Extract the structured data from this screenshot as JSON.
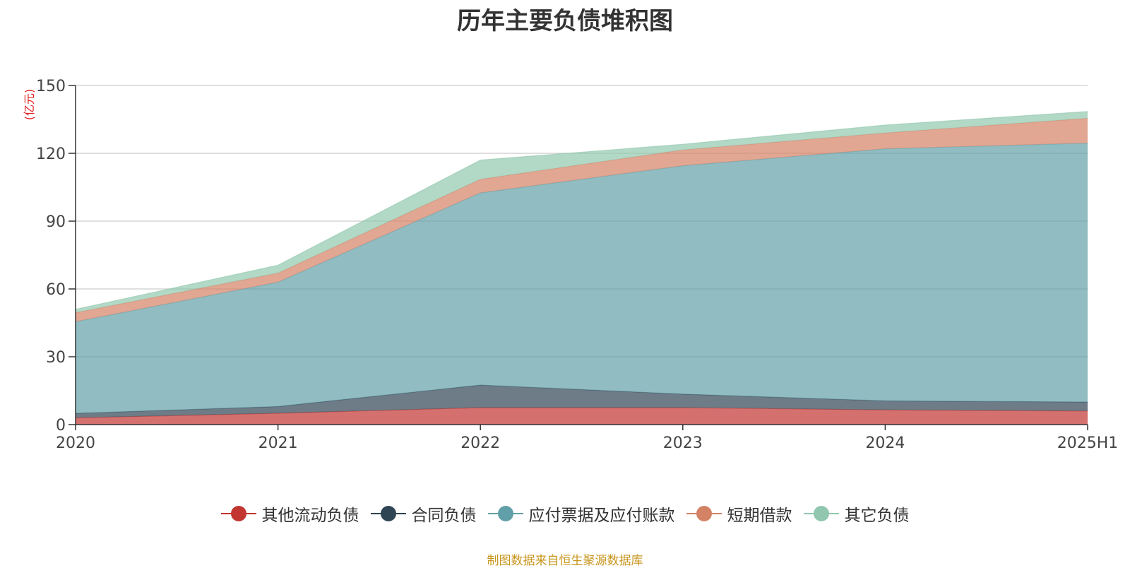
{
  "title": "历年主要负债堆积图",
  "unit_label": "(亿元)",
  "source": "制图数据来自恒生聚源数据库",
  "chart_data": {
    "type": "area",
    "stacked": true,
    "categories": [
      "2020",
      "2021",
      "2022",
      "2023",
      "2024",
      "2025H1"
    ],
    "ylim": [
      0,
      150
    ],
    "yticks": [
      0,
      30,
      60,
      90,
      120,
      150
    ],
    "grid": true,
    "legend_position": "bottom",
    "series": [
      {
        "name": "其他流动负债",
        "values": [
          3,
          5,
          7.5,
          7.5,
          6.5,
          6
        ],
        "color": "#c23531"
      },
      {
        "name": "合同负债",
        "values": [
          2,
          3,
          10,
          6,
          4,
          4
        ],
        "color": "#2f4554"
      },
      {
        "name": "应付票据及应付账款",
        "values": [
          40.5,
          55,
          85,
          101,
          111.5,
          114.5
        ],
        "color": "#61a0a8"
      },
      {
        "name": "短期借款",
        "values": [
          4,
          4,
          6,
          7,
          7,
          11
        ],
        "color": "#d48265"
      },
      {
        "name": "其它负债",
        "values": [
          1.5,
          3.5,
          8.5,
          2.5,
          3.5,
          3
        ],
        "color": "#91c7ae"
      }
    ]
  }
}
